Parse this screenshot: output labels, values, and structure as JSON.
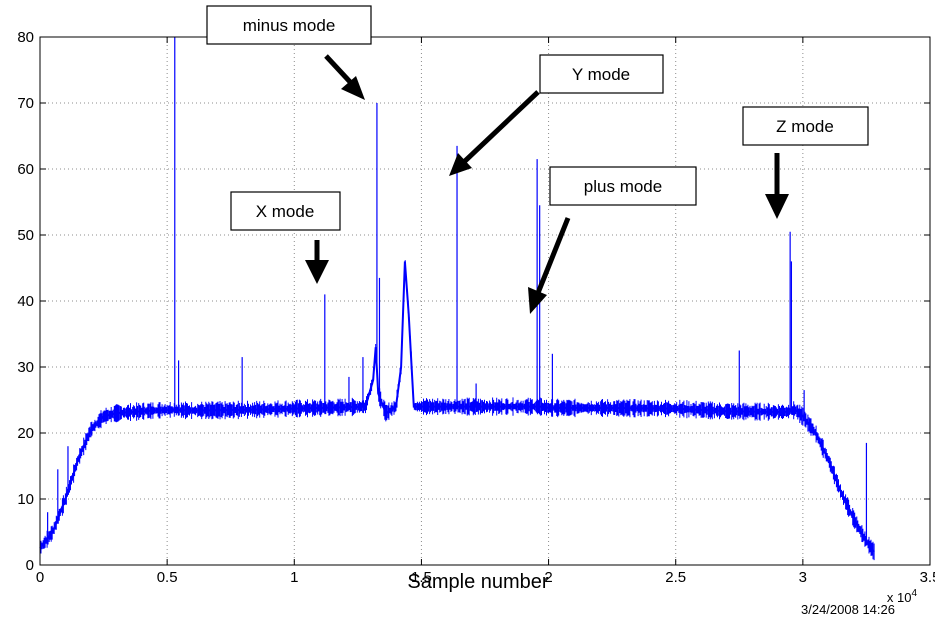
{
  "chart_data": {
    "type": "line",
    "title": "",
    "xlabel": "Sample number",
    "ylabel": "",
    "x_exponent_label": "x 10",
    "x_exponent_power": "4",
    "timestamp": "3/24/2008 14:26",
    "xlim": [
      0,
      35000
    ],
    "ylim": [
      0,
      80
    ],
    "xticks": [
      0,
      5000,
      10000,
      15000,
      20000,
      25000,
      30000,
      35000
    ],
    "xtick_labels": [
      "0",
      "0.5",
      "1",
      "1.5",
      "2",
      "2.5",
      "3",
      "3.5"
    ],
    "yticks": [
      0,
      10,
      20,
      30,
      40,
      50,
      60,
      70,
      80
    ],
    "ytick_labels": [
      "0",
      "10",
      "20",
      "30",
      "40",
      "50",
      "60",
      "70",
      "80"
    ],
    "grid": true,
    "line_color": "#0000ff",
    "series": [
      {
        "x": [
          0,
          500,
          1000,
          1500,
          2000,
          2500,
          3000,
          4000,
          5000,
          5300,
          6000,
          8000,
          10000,
          12000,
          12800,
          13100,
          13200,
          13300,
          13600,
          14000,
          14200,
          14350,
          14500,
          14700,
          15000,
          17000,
          19000,
          19500,
          19700,
          20000,
          22000,
          25000,
          27000,
          29000,
          29400,
          29700,
          30000,
          30500,
          31000,
          31500,
          32000,
          32500,
          32800
        ],
        "y": [
          2.5,
          5,
          10,
          16,
          20.5,
          22.5,
          23,
          23.3,
          23.5,
          23.5,
          23.4,
          23.5,
          23.7,
          23.9,
          24,
          28,
          33,
          26,
          23,
          24,
          30,
          46,
          38,
          24,
          24,
          24,
          24,
          24,
          24,
          23.8,
          23.8,
          23.7,
          23.3,
          23.2,
          23.2,
          23.5,
          22.5,
          20,
          16,
          11,
          7,
          3.5,
          2
        ]
      }
    ],
    "spikes": [
      {
        "x": 300,
        "y": 8
      },
      {
        "x": 700,
        "y": 14.5
      },
      {
        "x": 1100,
        "y": 18
      },
      {
        "x": 5300,
        "y": 80
      },
      {
        "x": 5450,
        "y": 31
      },
      {
        "x": 7950,
        "y": 31.5
      },
      {
        "x": 11200,
        "y": 41
      },
      {
        "x": 12150,
        "y": 28.5
      },
      {
        "x": 12700,
        "y": 31.5
      },
      {
        "x": 13250,
        "y": 70
      },
      {
        "x": 13350,
        "y": 43.5
      },
      {
        "x": 16400,
        "y": 63.5
      },
      {
        "x": 17150,
        "y": 27.5
      },
      {
        "x": 19550,
        "y": 61.5
      },
      {
        "x": 19650,
        "y": 54.5
      },
      {
        "x": 20150,
        "y": 32
      },
      {
        "x": 27500,
        "y": 32.5
      },
      {
        "x": 29500,
        "y": 50.5
      },
      {
        "x": 29550,
        "y": 46
      },
      {
        "x": 30050,
        "y": 26.5
      },
      {
        "x": 32500,
        "y": 18.5
      }
    ],
    "annotations": [
      {
        "text": "minus mode",
        "arrow_x": 13250,
        "arrow_y": 70
      },
      {
        "text": "Y mode",
        "arrow_x": 16400,
        "arrow_y": 59
      },
      {
        "text": "X mode",
        "arrow_x": 11200,
        "arrow_y": 42
      },
      {
        "text": "plus mode",
        "arrow_x": 19550,
        "arrow_y": 39
      },
      {
        "text": "Z mode",
        "arrow_x": 29500,
        "arrow_y": 52
      }
    ]
  }
}
